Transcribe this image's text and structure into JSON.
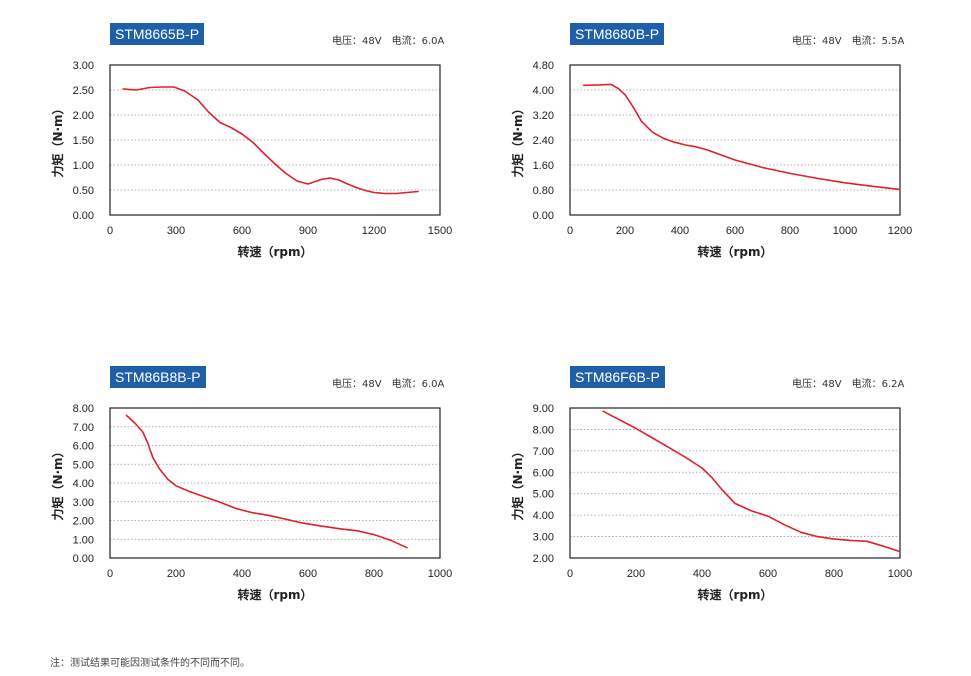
{
  "footnote": "注：测试结果可能因测试条件的不同而不同。",
  "chart_data": [
    {
      "type": "line",
      "model": "STM8665B-P",
      "voltage_text": "电压：48V",
      "current_text": "电流：6.0A",
      "xlabel": "转速（rpm）",
      "ylabel": "力矩（N·m）",
      "xlim": [
        0,
        1500
      ],
      "ylim": [
        0,
        3.0
      ],
      "xticks": [
        "0",
        "300",
        "600",
        "900",
        "1200",
        "1500"
      ],
      "yticks": [
        "0.00",
        "0.50",
        "1.00",
        "1.50",
        "2.00",
        "2.50",
        "3.00"
      ],
      "xtick_values": [
        0,
        300,
        600,
        900,
        1200,
        1500
      ],
      "ytick_values": [
        0,
        0.5,
        1.0,
        1.5,
        2.0,
        2.5,
        3.0
      ],
      "line_color": "#e0202c",
      "x": [
        60,
        120,
        180,
        240,
        290,
        340,
        400,
        450,
        500,
        550,
        600,
        650,
        700,
        750,
        800,
        850,
        900,
        940,
        960,
        1000,
        1040,
        1080,
        1120,
        1160,
        1200,
        1250,
        1300,
        1350,
        1400
      ],
      "y": [
        2.52,
        2.5,
        2.55,
        2.56,
        2.56,
        2.48,
        2.3,
        2.05,
        1.85,
        1.75,
        1.62,
        1.45,
        1.23,
        1.02,
        0.83,
        0.68,
        0.62,
        0.68,
        0.71,
        0.74,
        0.7,
        0.62,
        0.55,
        0.49,
        0.45,
        0.43,
        0.43,
        0.45,
        0.47
      ]
    },
    {
      "type": "line",
      "model": "STM8680B-P",
      "voltage_text": "电压：48V",
      "current_text": "电流：5.5A",
      "xlabel": "转速（rpm）",
      "ylabel": "力矩（N·m）",
      "xlim": [
        0,
        1200
      ],
      "ylim": [
        0,
        4.8
      ],
      "xticks": [
        "0",
        "200",
        "400",
        "600",
        "800",
        "1000",
        "1200"
      ],
      "yticks": [
        "0.00",
        "0.80",
        "1.60",
        "2.40",
        "3.20",
        "4.00",
        "4.80"
      ],
      "xtick_values": [
        0,
        200,
        400,
        600,
        800,
        1000,
        1200
      ],
      "ytick_values": [
        0,
        0.8,
        1.6,
        2.4,
        3.2,
        4.0,
        4.8
      ],
      "line_color": "#e0202c",
      "x": [
        50,
        100,
        150,
        175,
        200,
        230,
        260,
        300,
        340,
        380,
        420,
        460,
        500,
        550,
        600,
        700,
        800,
        900,
        1000,
        1100,
        1200
      ],
      "y": [
        4.15,
        4.16,
        4.18,
        4.05,
        3.85,
        3.45,
        3.0,
        2.65,
        2.45,
        2.33,
        2.24,
        2.18,
        2.08,
        1.92,
        1.76,
        1.52,
        1.33,
        1.17,
        1.03,
        0.92,
        0.82
      ]
    },
    {
      "type": "line",
      "model": "STM86B8B-P",
      "voltage_text": "电压：48V",
      "current_text": "电流：6.0A",
      "xlabel": "转速（rpm）",
      "ylabel": "力矩（N·m）",
      "xlim": [
        0,
        1000
      ],
      "ylim": [
        0,
        8.0
      ],
      "xticks": [
        "0",
        "200",
        "400",
        "600",
        "800",
        "1000"
      ],
      "yticks": [
        "0.00",
        "1.00",
        "2.00",
        "3.00",
        "4.00",
        "5.00",
        "6.00",
        "7.00",
        "8.00"
      ],
      "xtick_values": [
        0,
        200,
        400,
        600,
        800,
        1000
      ],
      "ytick_values": [
        0,
        1,
        2,
        3,
        4,
        5,
        6,
        7,
        8
      ],
      "line_color": "#e0202c",
      "x": [
        50,
        75,
        100,
        115,
        130,
        150,
        175,
        200,
        240,
        280,
        330,
        380,
        430,
        480,
        530,
        580,
        640,
        700,
        750,
        800,
        850,
        900
      ],
      "y": [
        7.6,
        7.2,
        6.7,
        6.1,
        5.35,
        4.75,
        4.2,
        3.85,
        3.55,
        3.3,
        3.0,
        2.65,
        2.42,
        2.28,
        2.08,
        1.88,
        1.7,
        1.55,
        1.45,
        1.25,
        0.95,
        0.55
      ]
    },
    {
      "type": "line",
      "model": "STM86F6B-P",
      "voltage_text": "电压：48V",
      "current_text": "电流：6.2A",
      "xlabel": "转速（rpm）",
      "ylabel": "力矩（N·m）",
      "xlim": [
        0,
        1000
      ],
      "ylim": [
        2.0,
        9.0
      ],
      "xticks": [
        "0",
        "200",
        "400",
        "600",
        "800",
        "1000"
      ],
      "yticks": [
        "2.00",
        "3.00",
        "4.00",
        "5.00",
        "6.00",
        "7.00",
        "8.00",
        "9.00"
      ],
      "xtick_values": [
        0,
        200,
        400,
        600,
        800,
        1000
      ],
      "ytick_values": [
        2,
        3,
        4,
        5,
        6,
        7,
        8,
        9
      ],
      "line_color": "#e0202c",
      "x": [
        100,
        150,
        200,
        250,
        300,
        350,
        400,
        430,
        460,
        500,
        550,
        600,
        650,
        700,
        750,
        800,
        850,
        900,
        950,
        1000
      ],
      "y": [
        8.85,
        8.45,
        8.05,
        7.6,
        7.15,
        6.7,
        6.2,
        5.75,
        5.2,
        4.55,
        4.2,
        3.95,
        3.55,
        3.2,
        3.0,
        2.88,
        2.82,
        2.78,
        2.55,
        2.3
      ]
    }
  ]
}
